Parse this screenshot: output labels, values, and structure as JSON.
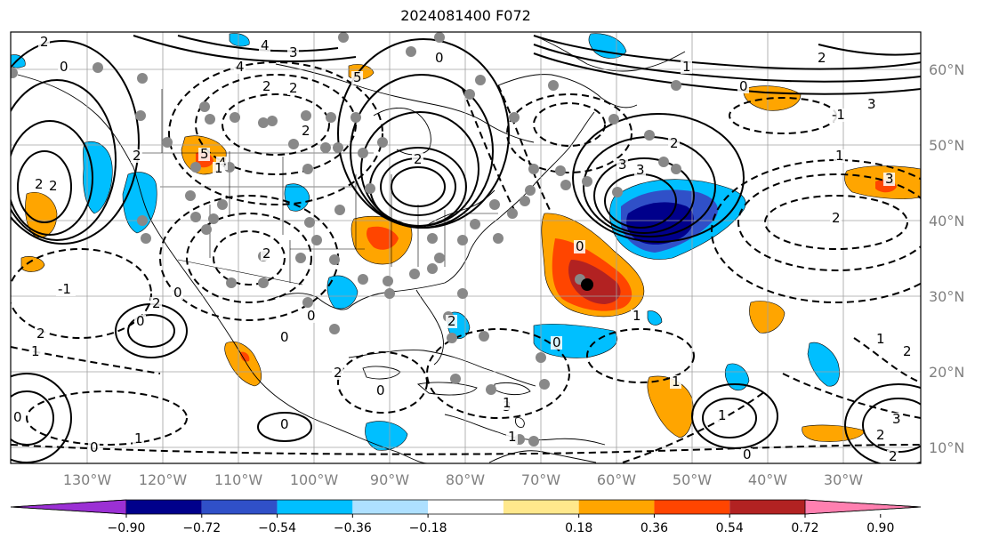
{
  "title": "2024081400 F072",
  "lon_labels": [
    "130°W",
    "120°W",
    "110°W",
    "100°W",
    "90°W",
    "80°W",
    "70°W",
    "60°W",
    "50°W",
    "40°W",
    "30°W"
  ],
  "lat_labels": [
    "60°N",
    "50°N",
    "40°N",
    "30°N",
    "20°N",
    "10°N"
  ],
  "colorbar": {
    "tick_labels": [
      "−0.90",
      "−0.72",
      "−0.54",
      "−0.36",
      "−0.18",
      "0.18",
      "0.36",
      "0.54",
      "0.72",
      "0.90"
    ],
    "colors": [
      "#9b30d4",
      "#00008b",
      "#3050c8",
      "#00bfff",
      "#aee0ff",
      "#ffffff",
      "#ffe88c",
      "#ffa500",
      "#ff4500",
      "#b22222",
      "#ff80b0"
    ]
  },
  "contour_labels": [
    "2",
    "0",
    "4",
    "3",
    "2",
    "2",
    "0",
    "4",
    "5",
    "1",
    "2",
    "0",
    "-1",
    "3",
    "2",
    "2",
    "3",
    "2",
    "0",
    "3",
    "2",
    "3",
    "4",
    "5",
    "2",
    "2",
    "1",
    "2",
    "-1",
    "2",
    "1",
    "0",
    "2",
    "2",
    "3",
    "2",
    "0",
    "1",
    "1",
    "1",
    "1",
    "0",
    "2",
    "3",
    "2",
    "2",
    "1",
    "0",
    "0",
    "0",
    "0",
    "1",
    "0",
    "1",
    "1",
    "0",
    "0",
    "2"
  ]
}
